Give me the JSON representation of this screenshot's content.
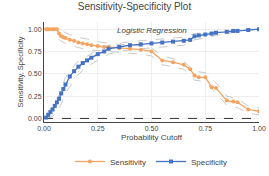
{
  "chart_data": {
    "type": "line",
    "title": "Sensitivity-Specificity Plot",
    "subtitle": "Logistic Regression",
    "xlabel": "Probability Cutoff",
    "ylabel": "Sensitivity, Specificity",
    "xlim": [
      0,
      1
    ],
    "ylim": [
      -0.04,
      1.08
    ],
    "xticks": [
      {
        "value": 0,
        "label": "0.00"
      },
      {
        "value": 0.25,
        "label": "0.25"
      },
      {
        "value": 0.5,
        "label": "0.50"
      },
      {
        "value": 0.75,
        "label": "0.75"
      },
      {
        "value": 1,
        "label": "1.00"
      }
    ],
    "yticks": [
      {
        "value": 0,
        "label": "0.00"
      },
      {
        "value": 0.25,
        "label": "0.25"
      },
      {
        "value": 0.5,
        "label": "0.50"
      },
      {
        "value": 0.75,
        "label": "0.75"
      },
      {
        "value": 1,
        "label": "1.00"
      }
    ],
    "grid": true,
    "legend": "bottom",
    "series": [
      {
        "color": "#BBBBBB",
        "line_style": "dashed",
        "x": [
          0.01,
          0.04,
          0.07,
          0.1,
          0.15,
          0.2,
          0.25,
          0.3,
          0.35,
          0.4,
          0.45,
          0.5,
          0.55,
          0.6,
          0.65,
          0.7,
          0.75,
          0.8,
          0.85,
          0.9,
          0.95,
          1.0
        ],
        "values": [
          1.0,
          1.0,
          1.0,
          0.96,
          0.91,
          0.89,
          0.86,
          0.84,
          0.83,
          0.82,
          0.81,
          0.79,
          0.7,
          0.67,
          0.64,
          0.53,
          0.51,
          0.4,
          0.25,
          0.22,
          0.14,
          0.12
        ]
      },
      {
        "color": "#BBBBBB",
        "line_style": "dashed",
        "x": [
          0.01,
          0.04,
          0.07,
          0.1,
          0.15,
          0.2,
          0.25,
          0.3,
          0.35,
          0.4,
          0.45,
          0.5,
          0.55,
          0.6,
          0.65,
          0.7,
          0.75,
          0.8,
          0.85,
          0.9,
          0.95,
          1.0
        ],
        "values": [
          1.0,
          1.0,
          0.88,
          0.84,
          0.8,
          0.77,
          0.76,
          0.75,
          0.74,
          0.73,
          0.72,
          0.7,
          0.6,
          0.58,
          0.55,
          0.43,
          0.41,
          0.28,
          0.15,
          0.12,
          0.06,
          0.04
        ]
      },
      {
        "color": "#BBBBBB",
        "line_style": "dashed",
        "x": [
          0.01,
          0.04,
          0.07,
          0.1,
          0.15,
          0.2,
          0.25,
          0.3,
          0.35,
          0.4,
          0.45,
          0.5,
          0.55,
          0.6,
          0.65,
          0.7,
          0.75,
          0.8,
          0.85,
          0.9,
          0.95,
          1.0
        ],
        "values": [
          0.05,
          0.14,
          0.26,
          0.46,
          0.62,
          0.7,
          0.77,
          0.82,
          0.84,
          0.86,
          0.87,
          0.88,
          0.89,
          0.9,
          0.91,
          0.95,
          0.96,
          0.97,
          0.98,
          0.99,
          1.0,
          1.0
        ]
      },
      {
        "color": "#BBBBBB",
        "line_style": "dashed",
        "x": [
          0.01,
          0.04,
          0.07,
          0.1,
          0.15,
          0.2,
          0.25,
          0.3,
          0.35,
          0.4,
          0.45,
          0.5,
          0.55,
          0.6,
          0.65,
          0.7,
          0.75,
          0.8,
          0.85,
          0.9,
          0.95,
          1.0
        ],
        "values": [
          0.0,
          0.02,
          0.1,
          0.28,
          0.47,
          0.58,
          0.65,
          0.72,
          0.75,
          0.77,
          0.78,
          0.79,
          0.8,
          0.81,
          0.82,
          0.88,
          0.9,
          0.93,
          0.95,
          0.97,
          0.99,
          1.0
        ]
      },
      {
        "color": "#000000",
        "line_style": "dashed",
        "x": [
          0,
          1
        ],
        "values": [
          0,
          0
        ]
      },
      {
        "name": "Sensitivity",
        "color": "#F4A460",
        "line_style": "solid",
        "marker": "circle",
        "x": [
          0.01,
          0.02,
          0.03,
          0.04,
          0.05,
          0.06,
          0.07,
          0.08,
          0.09,
          0.1,
          0.12,
          0.14,
          0.16,
          0.18,
          0.2,
          0.22,
          0.25,
          0.28,
          0.3,
          0.35,
          0.4,
          0.45,
          0.5,
          0.55,
          0.6,
          0.65,
          0.68,
          0.7,
          0.72,
          0.75,
          0.78,
          0.8,
          0.85,
          0.88,
          0.9,
          0.95,
          1.0
        ],
        "values": [
          1.0,
          1.0,
          1.0,
          1.0,
          1.0,
          1.0,
          0.95,
          0.92,
          0.91,
          0.9,
          0.88,
          0.87,
          0.85,
          0.84,
          0.83,
          0.82,
          0.81,
          0.8,
          0.8,
          0.79,
          0.78,
          0.77,
          0.75,
          0.65,
          0.63,
          0.6,
          0.55,
          0.48,
          0.46,
          0.46,
          0.35,
          0.34,
          0.2,
          0.19,
          0.18,
          0.1,
          0.08
        ]
      },
      {
        "name": "Specificity",
        "color": "#4472C4",
        "line_style": "solid",
        "marker": "square",
        "x": [
          0.01,
          0.02,
          0.03,
          0.04,
          0.05,
          0.06,
          0.07,
          0.08,
          0.09,
          0.1,
          0.12,
          0.14,
          0.16,
          0.18,
          0.2,
          0.22,
          0.25,
          0.28,
          0.3,
          0.35,
          0.4,
          0.45,
          0.5,
          0.55,
          0.6,
          0.65,
          0.68,
          0.7,
          0.72,
          0.75,
          0.78,
          0.8,
          0.85,
          0.88,
          0.9,
          0.95,
          1.0
        ],
        "values": [
          0.01,
          0.04,
          0.07,
          0.1,
          0.14,
          0.18,
          0.22,
          0.28,
          0.33,
          0.38,
          0.47,
          0.53,
          0.58,
          0.62,
          0.65,
          0.68,
          0.72,
          0.75,
          0.78,
          0.8,
          0.82,
          0.83,
          0.84,
          0.85,
          0.86,
          0.87,
          0.88,
          0.92,
          0.93,
          0.94,
          0.95,
          0.96,
          0.97,
          0.98,
          0.98,
          0.99,
          1.0
        ]
      }
    ]
  }
}
